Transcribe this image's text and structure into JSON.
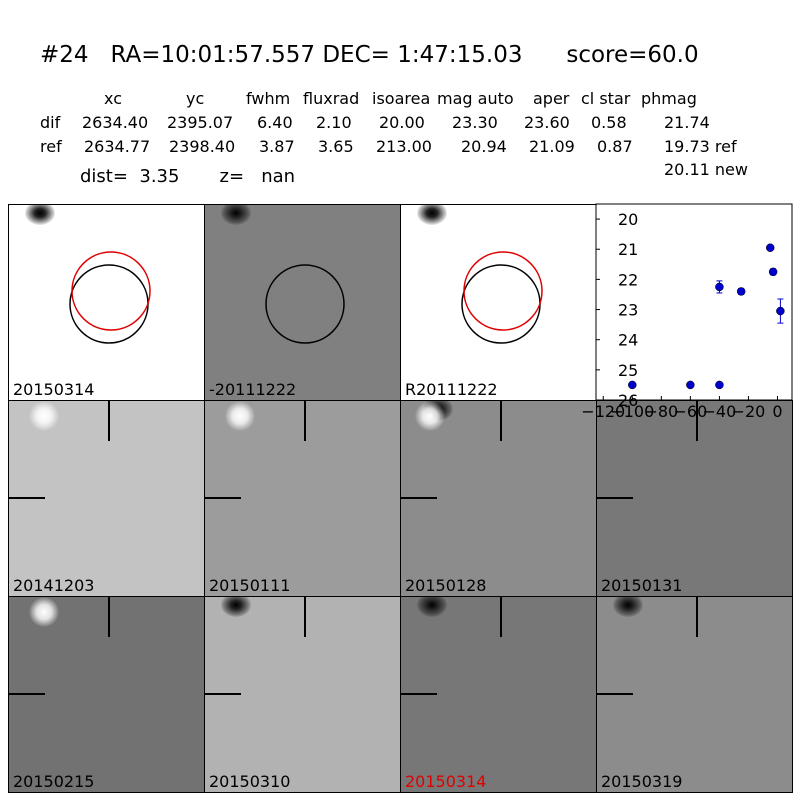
{
  "header": {
    "title": "#24   RA=10:01:57.557 DEC= 1:47:15.03      score=60.0",
    "columns": [
      "xc",
      "yc",
      "fwhm",
      "fluxrad",
      "isoarea",
      "mag auto",
      "aper",
      "cl star",
      "phmag"
    ],
    "rows": [
      {
        "label": "dif",
        "values": [
          "2634.40",
          "2395.07",
          "6.40",
          "2.10",
          "20.00",
          "23.30",
          "23.60",
          "0.58",
          "21.74"
        ]
      },
      {
        "label": "ref",
        "values": [
          "2634.77",
          "2398.40",
          "3.87",
          "3.65",
          "213.00",
          "20.94",
          "21.09",
          "0.87",
          "19.73 ref"
        ]
      }
    ],
    "phmag_new": "20.11 new",
    "dist_line": "dist=  3.35       z=   nan"
  },
  "panels": [
    {
      "label": "20150314",
      "bg": "#ffffff",
      "kind": "circles-red-black",
      "blob": "dark"
    },
    {
      "label": "-20111222",
      "bg": "#808080",
      "kind": "circle-black",
      "blob": "dark"
    },
    {
      "label": "R20111222",
      "bg": "#ffffff",
      "kind": "circles-red-black",
      "blob": "dark"
    },
    {
      "label": "20141203",
      "bg": "#c3c3c3",
      "kind": "ticks",
      "blob": "light"
    },
    {
      "label": "20150111",
      "bg": "#9c9c9c",
      "kind": "ticks",
      "blob": "light"
    },
    {
      "label": "20150128",
      "bg": "#8c8c8c",
      "kind": "ticks",
      "blob": "both"
    },
    {
      "label": "20150131",
      "bg": "#787878",
      "kind": "ticks",
      "blob": "none"
    },
    {
      "label": "20150215",
      "bg": "#727272",
      "kind": "ticks",
      "blob": "light"
    },
    {
      "label": "20150310",
      "bg": "#b2b2b2",
      "kind": "ticks",
      "blob": "dark"
    },
    {
      "label": "20150314",
      "bg": "#777777",
      "kind": "ticks",
      "blob": "dark",
      "label_color": "#e00000"
    },
    {
      "label": "20150319",
      "bg": "#8c8c8c",
      "kind": "ticks",
      "blob": "dark"
    }
  ],
  "chart_data": {
    "type": "scatter",
    "x": [
      -100,
      -60,
      -40,
      -40,
      -25,
      -5,
      -3,
      2
    ],
    "y": [
      25.5,
      25.5,
      25.5,
      22.25,
      22.4,
      20.95,
      21.75,
      23.05
    ],
    "yerr": [
      0.05,
      0.05,
      0.05,
      0.2,
      0.1,
      0.05,
      0.1,
      0.4
    ],
    "xlim": [
      -125,
      10
    ],
    "ylim": [
      26,
      19.5
    ],
    "xticks": [
      -120,
      -100,
      -80,
      -60,
      -40,
      -20,
      0
    ],
    "xtick_labels": [
      "−120",
      "−100",
      "−80",
      "−60",
      "−40",
      "−20",
      "0"
    ],
    "yticks": [
      20,
      21,
      22,
      23,
      24,
      25,
      26
    ],
    "ytick_labels": [
      "20",
      "21",
      "22",
      "23",
      "24",
      "25",
      "26"
    ],
    "color": "#0000cc",
    "inverted_y": true
  }
}
